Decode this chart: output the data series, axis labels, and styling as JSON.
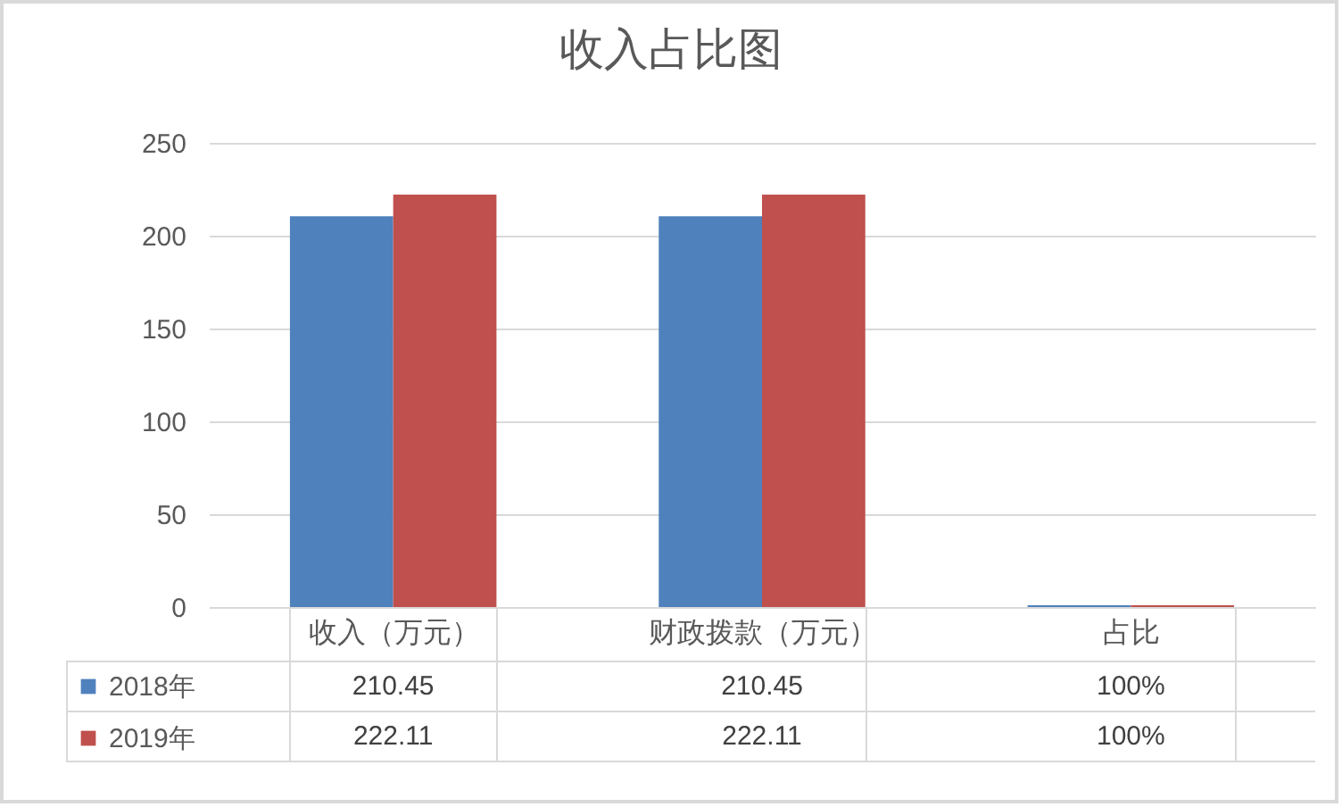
{
  "chart_data": {
    "type": "bar",
    "title": "收入占比图",
    "categories": [
      "收入（万元）",
      "财政拨款（万元）",
      "占比"
    ],
    "series": [
      {
        "name": "2018年",
        "color": "#4f81bd",
        "values": [
          210.45,
          210.45,
          1
        ],
        "value_labels": [
          "210.45",
          "210.45",
          "100%"
        ]
      },
      {
        "name": "2019年",
        "color": "#c0504d",
        "values": [
          222.11,
          222.11,
          1
        ],
        "value_labels": [
          "222.11",
          "222.11",
          "100%"
        ]
      }
    ],
    "ylim": [
      0,
      250
    ],
    "yticks": [
      0,
      50,
      100,
      150,
      200,
      250
    ],
    "grid": "y",
    "legend": "bottom left"
  }
}
